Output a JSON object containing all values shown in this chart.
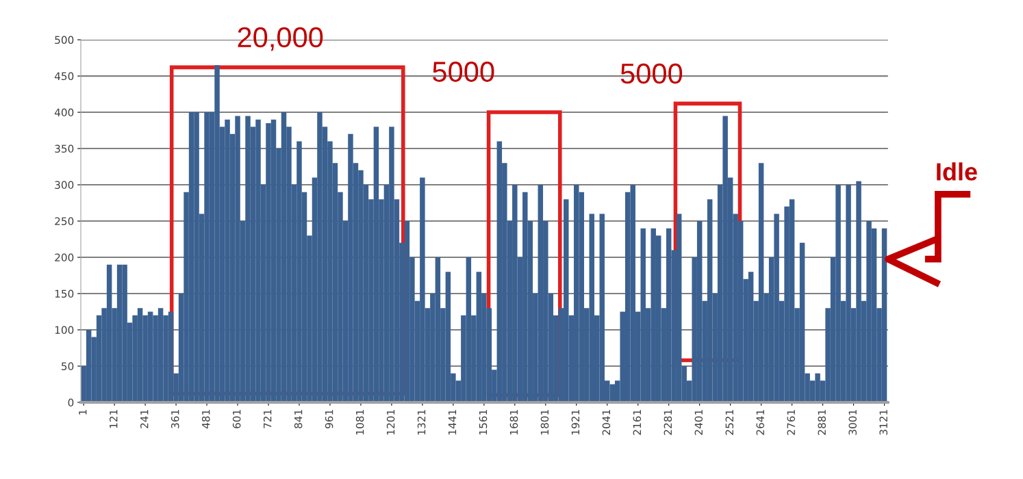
{
  "chart_data": {
    "type": "bar",
    "color": "#3b6191",
    "x": [
      1,
      21,
      41,
      61,
      81,
      101,
      121,
      141,
      161,
      181,
      201,
      221,
      241,
      261,
      281,
      301,
      321,
      341,
      361,
      381,
      401,
      421,
      441,
      461,
      481,
      501,
      521,
      541,
      561,
      581,
      601,
      621,
      641,
      661,
      681,
      701,
      721,
      741,
      761,
      781,
      801,
      821,
      841,
      861,
      881,
      901,
      921,
      941,
      961,
      981,
      1001,
      1021,
      1041,
      1061,
      1081,
      1101,
      1121,
      1141,
      1161,
      1181,
      1201,
      1221,
      1241,
      1261,
      1281,
      1301,
      1321,
      1341,
      1361,
      1381,
      1401,
      1421,
      1441,
      1461,
      1481,
      1501,
      1521,
      1541,
      1561,
      1581,
      1601,
      1621,
      1641,
      1661,
      1681,
      1701,
      1721,
      1741,
      1761,
      1781,
      1801,
      1821,
      1841,
      1861,
      1881,
      1901,
      1921,
      1941,
      1961,
      1981,
      2001,
      2021,
      2041,
      2061,
      2081,
      2101,
      2121,
      2141,
      2161,
      2181,
      2201,
      2221,
      2241,
      2261,
      2281,
      2301,
      2321,
      2341,
      2361,
      2381,
      2401,
      2421,
      2441,
      2461,
      2481,
      2501,
      2521,
      2541,
      2561,
      2581,
      2601,
      2621,
      2641,
      2661,
      2681,
      2701,
      2721,
      2741,
      2761,
      2781,
      2801,
      2821,
      2841,
      2861,
      2881,
      2901,
      2921,
      2941,
      2961,
      2981,
      3001,
      3021,
      3041,
      3061,
      3081,
      3101,
      3121
    ],
    "values": [
      50,
      100,
      90,
      120,
      130,
      190,
      130,
      190,
      190,
      110,
      120,
      130,
      120,
      125,
      120,
      130,
      120,
      125,
      40,
      150,
      290,
      400,
      400,
      260,
      400,
      400,
      465,
      380,
      390,
      370,
      395,
      250,
      395,
      380,
      390,
      300,
      385,
      390,
      350,
      400,
      380,
      300,
      360,
      290,
      230,
      310,
      400,
      380,
      360,
      330,
      290,
      250,
      370,
      330,
      320,
      300,
      280,
      380,
      280,
      300,
      380,
      280,
      220,
      250,
      200,
      140,
      310,
      130,
      150,
      200,
      130,
      180,
      40,
      30,
      120,
      200,
      120,
      180,
      150,
      130,
      45,
      360,
      330,
      250,
      300,
      200,
      290,
      250,
      150,
      300,
      250,
      150,
      120,
      130,
      280,
      120,
      300,
      290,
      130,
      260,
      120,
      260,
      30,
      25,
      30,
      125,
      290,
      300,
      125,
      240,
      130,
      240,
      230,
      130,
      240,
      210,
      260,
      50,
      30,
      200,
      250,
      140,
      280,
      150,
      300,
      395,
      310,
      260,
      250,
      170,
      180,
      140,
      330,
      150,
      200,
      260,
      140,
      270,
      280,
      130,
      220,
      40,
      30,
      40,
      30,
      130,
      200,
      300,
      140,
      300,
      130,
      305,
      140,
      250,
      240,
      130,
      240
    ],
    "xlim": [
      -10,
      3135
    ],
    "xticks": [
      1,
      121,
      241,
      361,
      481,
      601,
      721,
      841,
      961,
      1081,
      1201,
      1321,
      1441,
      1561,
      1681,
      1801,
      1921,
      2041,
      2161,
      2281,
      2401,
      2521,
      2641,
      2761,
      2881,
      3001,
      3121
    ],
    "ylim": [
      0,
      500
    ],
    "yticks": [
      0,
      50,
      100,
      150,
      200,
      250,
      300,
      350,
      400,
      450,
      500
    ],
    "grid": "y",
    "annotations": [
      "20,000",
      "5000",
      "5000",
      "Idle"
    ]
  }
}
